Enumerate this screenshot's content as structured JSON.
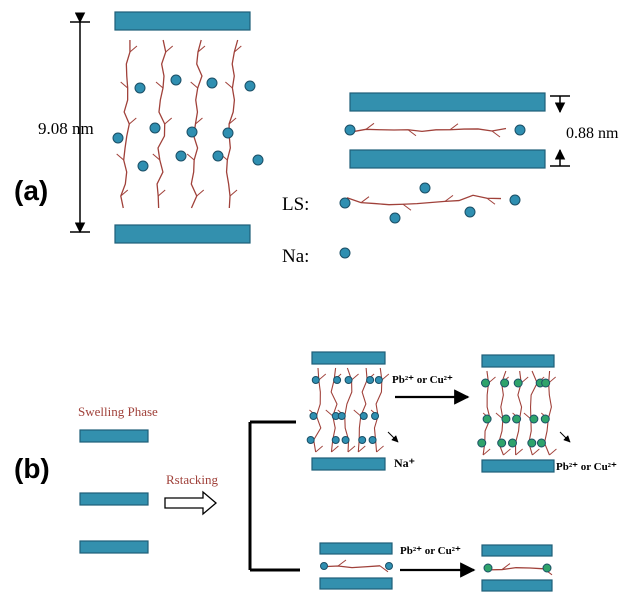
{
  "panel_a": {
    "label": "(a)",
    "spacing_large": "9.08 nm",
    "spacing_small": "0.88 nm",
    "legend": {
      "ls": "LS:",
      "na": "Na:"
    }
  },
  "panel_b": {
    "label": "(b)",
    "swelling_phase": "Swelling Phase",
    "restacking": "Rstacking",
    "exchange_top": "Pb²⁺ or Cu²⁺",
    "released_ion": "Na⁺",
    "product_ion": "Pb²⁺ or Cu²⁺",
    "exchange_bottom": "Pb²⁺ or Cu²⁺"
  }
}
